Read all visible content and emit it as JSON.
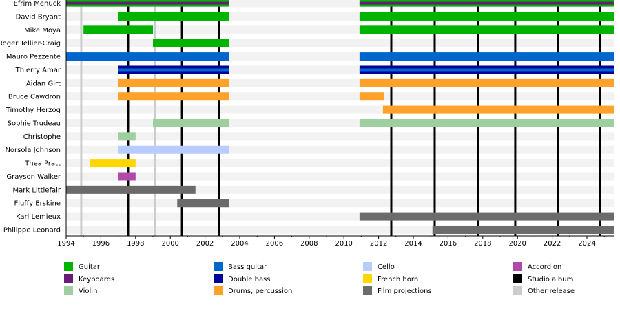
{
  "chart_data": {
    "type": "timeline",
    "title": "",
    "x_range": [
      1994,
      2025.55
    ],
    "x_ticks": [
      1994,
      1996,
      1998,
      2000,
      2002,
      2004,
      2006,
      2008,
      2010,
      2012,
      2014,
      2016,
      2018,
      2020,
      2022,
      2024
    ],
    "colors": {
      "Guitar": "#00b400",
      "Keyboards": "#6a1b7a",
      "Violin": "#9fcf9f",
      "Bass guitar": "#0066cc",
      "Double bass": "#000099",
      "Drums, percussion": "#ffa22a",
      "Cello": "#b7cdff",
      "French horn": "#ffd700",
      "Film projections": "#6b6b6b",
      "Accordion": "#b04aa8",
      "Studio album": "#000000",
      "Other release": "#cccccc"
    },
    "legend": [
      "Guitar",
      "Keyboards",
      "Violin",
      "Bass guitar",
      "Double bass",
      "Drums, percussion",
      "Cello",
      "French horn",
      "Film projections",
      "Accordion",
      "Studio album",
      "Other release"
    ],
    "studio_albums": [
      1997.57,
      2000.67,
      2002.8,
      2012.73,
      2015.23,
      2017.73,
      2019.87,
      2022.33,
      2024.75
    ],
    "other_releases": [
      1994.87,
      1999.12
    ],
    "members": [
      {
        "name": "Efrim Menuck",
        "bars": [
          {
            "start": 1994,
            "end": 2003.4,
            "role": "Guitar",
            "stripe": "Keyboards"
          },
          {
            "start": 2010.9,
            "end": 2025.55,
            "role": "Guitar",
            "stripe": "Keyboards"
          }
        ]
      },
      {
        "name": "David Bryant",
        "bars": [
          {
            "start": 1997,
            "end": 2003.4,
            "role": "Guitar"
          },
          {
            "start": 2010.9,
            "end": 2025.55,
            "role": "Guitar"
          }
        ]
      },
      {
        "name": "Mike Moya",
        "bars": [
          {
            "start": 1995,
            "end": 1999,
            "role": "Guitar"
          },
          {
            "start": 2010.9,
            "end": 2025.55,
            "role": "Guitar"
          }
        ]
      },
      {
        "name": "Roger Tellier-Craig",
        "bars": [
          {
            "start": 1999,
            "end": 2003.4,
            "role": "Guitar"
          }
        ]
      },
      {
        "name": "Mauro Pezzente",
        "bars": [
          {
            "start": 1994,
            "end": 2003.4,
            "role": "Bass guitar"
          },
          {
            "start": 2010.9,
            "end": 2025.55,
            "role": "Bass guitar"
          }
        ]
      },
      {
        "name": "Thierry Amar",
        "bars": [
          {
            "start": 1997,
            "end": 2003.4,
            "role": "Double bass",
            "stripe": "Bass guitar"
          },
          {
            "start": 2010.9,
            "end": 2025.55,
            "role": "Double bass",
            "stripe": "Bass guitar"
          }
        ]
      },
      {
        "name": "Aidan Girt",
        "bars": [
          {
            "start": 1997,
            "end": 2003.4,
            "role": "Drums, percussion"
          },
          {
            "start": 2010.9,
            "end": 2025.55,
            "role": "Drums, percussion"
          }
        ]
      },
      {
        "name": "Bruce Cawdron",
        "bars": [
          {
            "start": 1997,
            "end": 2003.4,
            "role": "Drums, percussion"
          },
          {
            "start": 2010.9,
            "end": 2012.3,
            "role": "Drums, percussion"
          }
        ]
      },
      {
        "name": "Timothy Herzog",
        "bars": [
          {
            "start": 2012.25,
            "end": 2025.55,
            "role": "Drums, percussion"
          }
        ]
      },
      {
        "name": "Sophie Trudeau",
        "bars": [
          {
            "start": 1999,
            "end": 2003.4,
            "role": "Violin"
          },
          {
            "start": 2010.9,
            "end": 2025.55,
            "role": "Violin"
          }
        ]
      },
      {
        "name": "Christophe",
        "bars": [
          {
            "start": 1997,
            "end": 1998,
            "role": "Violin"
          }
        ]
      },
      {
        "name": "Norsola Johnson",
        "bars": [
          {
            "start": 1997,
            "end": 2003.4,
            "role": "Cello"
          }
        ]
      },
      {
        "name": "Thea Pratt",
        "bars": [
          {
            "start": 1995.35,
            "end": 1998,
            "role": "French horn"
          }
        ]
      },
      {
        "name": "Grayson Walker",
        "bars": [
          {
            "start": 1997,
            "end": 1998,
            "role": "Accordion"
          }
        ]
      },
      {
        "name": "Mark Littlefair",
        "bars": [
          {
            "start": 1994,
            "end": 2001.45,
            "role": "Film projections"
          }
        ]
      },
      {
        "name": "Fluffy Erskine",
        "bars": [
          {
            "start": 2000.4,
            "end": 2003.4,
            "role": "Film projections"
          }
        ]
      },
      {
        "name": "Karl Lemieux",
        "bars": [
          {
            "start": 2010.9,
            "end": 2025.55,
            "role": "Film projections"
          }
        ]
      },
      {
        "name": "Philippe Leonard",
        "bars": [
          {
            "start": 2015.1,
            "end": 2025.55,
            "role": "Film projections"
          }
        ]
      }
    ]
  }
}
